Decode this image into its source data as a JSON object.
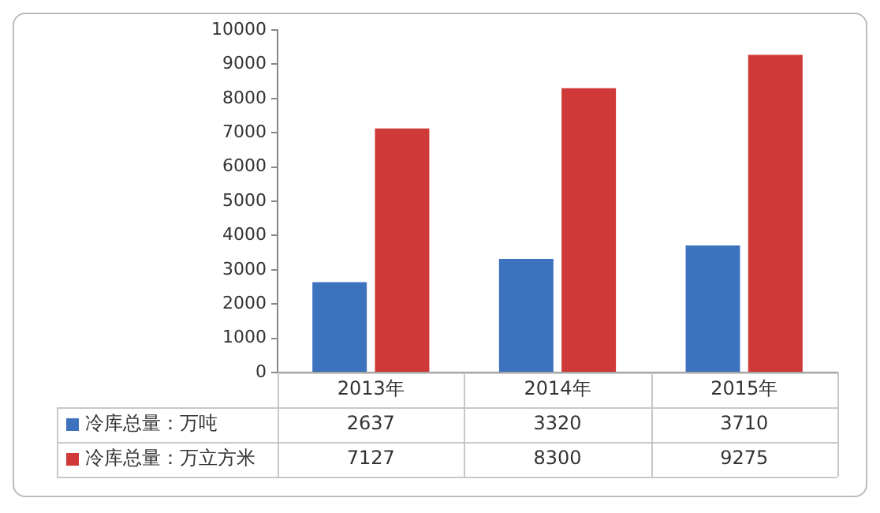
{
  "chart_data": {
    "type": "bar",
    "categories": [
      "2013年",
      "2014年",
      "2015年"
    ],
    "series": [
      {
        "name": "冷库总量：万吨",
        "color": "#3d72bf",
        "values": [
          2637,
          3320,
          3710
        ]
      },
      {
        "name": "冷库总量：万立方米",
        "color": "#cf3a38",
        "values": [
          7127,
          8300,
          9275
        ]
      }
    ],
    "ylim": [
      0,
      10000
    ],
    "yticks": [
      0,
      1000,
      2000,
      3000,
      4000,
      5000,
      6000,
      7000,
      8000,
      9000,
      10000
    ],
    "grid": false,
    "data_labels": true,
    "legend": "bottom"
  }
}
